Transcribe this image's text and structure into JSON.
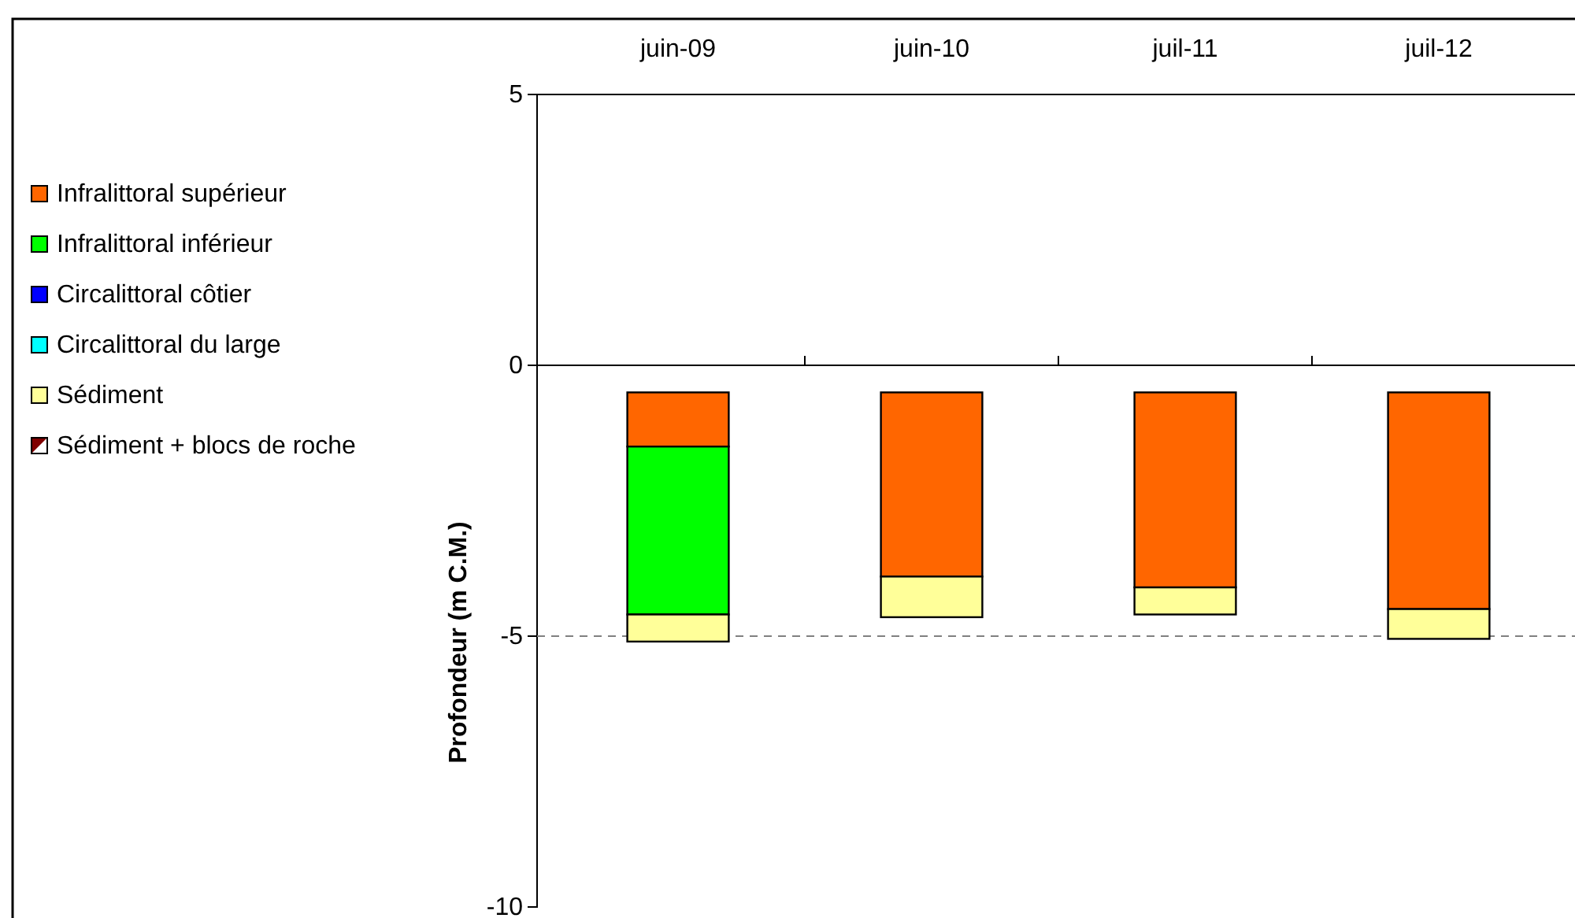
{
  "chart_data": {
    "type": "bar",
    "ylabel": "Profondeur (m C.M.)",
    "categories": [
      "juin-09",
      "juin-10",
      "juil-11",
      "juil-12"
    ],
    "series": [
      {
        "name": "Infralittoral supérieur",
        "color": "#ff6600",
        "base": [
          -0.5,
          -0.5,
          -0.5,
          -0.5
        ],
        "values": [
          -1.0,
          -3.4,
          -3.6,
          -4.0
        ]
      },
      {
        "name": "Infralittoral inférieur",
        "color": "#00ff00",
        "base": [
          -1.5,
          null,
          null,
          null
        ],
        "values": [
          -3.1,
          null,
          null,
          null
        ]
      },
      {
        "name": "Circalittoral côtier",
        "color": "#0000ff",
        "values": [
          null,
          null,
          null,
          null
        ]
      },
      {
        "name": "Circalittoral du large",
        "color": "#00ffff",
        "values": [
          null,
          null,
          null,
          null
        ]
      },
      {
        "name": "Sédiment",
        "color": "#ffff99",
        "base": [
          -4.6,
          -3.9,
          -4.1,
          -4.5
        ],
        "values": [
          -0.5,
          -0.75,
          -0.5,
          -0.55
        ]
      },
      {
        "name": "Sédiment + blocs de roche",
        "color": "#800000",
        "values": [
          null,
          null,
          null,
          null
        ]
      }
    ],
    "ylim": [
      -10,
      5
    ],
    "yticks": [
      -10,
      -5,
      0,
      5
    ],
    "ref_lines": [
      {
        "axis": "y",
        "value": -5,
        "color": "#808080",
        "line_style": "dashed"
      }
    ],
    "legend": "left",
    "grid": false
  }
}
